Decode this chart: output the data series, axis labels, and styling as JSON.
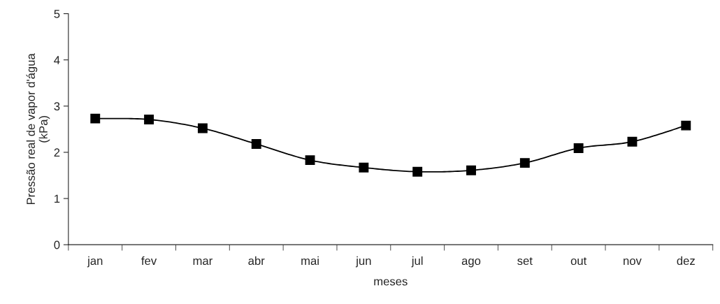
{
  "chart_data": {
    "type": "line",
    "xlabel": "meses",
    "ylabel": "Pressão real de vapor d'água\n(kPa)",
    "categories": [
      "jan",
      "fev",
      "mar",
      "abr",
      "mai",
      "jun",
      "jul",
      "ago",
      "set",
      "out",
      "nov",
      "dez"
    ],
    "series": [
      {
        "color": "#000000",
        "values": [
          2.73,
          2.71,
          2.52,
          2.18,
          1.83,
          1.67,
          1.58,
          1.61,
          1.77,
          2.09,
          2.23,
          2.58
        ]
      }
    ],
    "ylim": [
      0,
      5
    ],
    "yticks": [
      0,
      1,
      2,
      3,
      4,
      5
    ],
    "marker": "square",
    "line_style": "solid",
    "grid": false,
    "legend": false
  }
}
